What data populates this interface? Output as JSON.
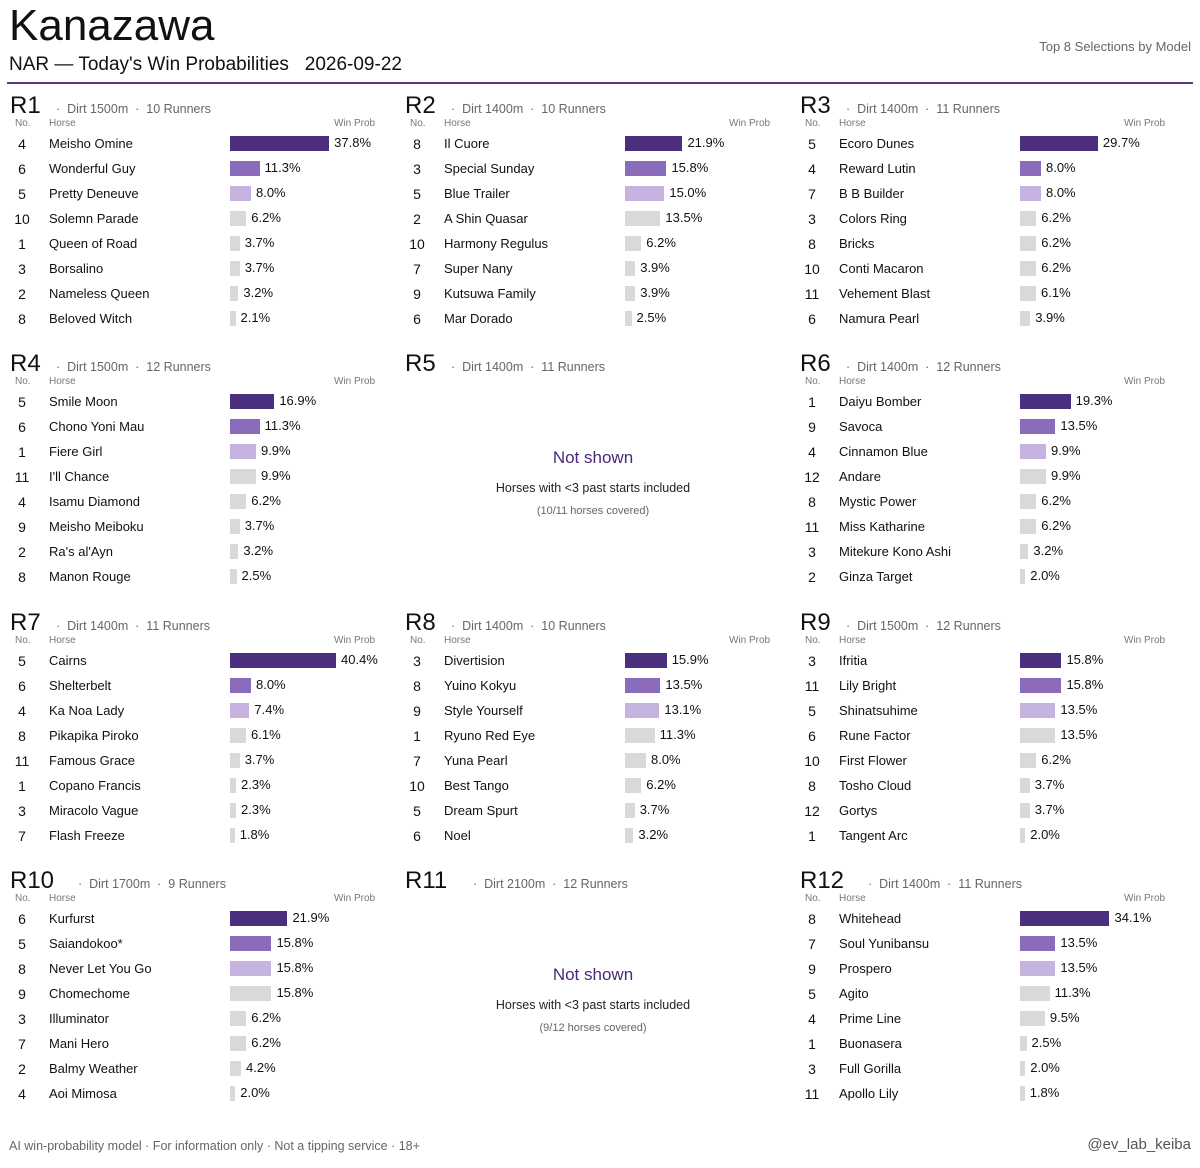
{
  "header": {
    "title": "Kanazawa",
    "subtitle": "NAR — Today's Win Probabilities   2026-09-22",
    "right_note": "Top 8 Selections by Model"
  },
  "footer": {
    "disclaimer": "AI win-probability model  ·  For information only  ·  Not a tipping service  ·  18+",
    "handle": "@ev_lab_keiba"
  },
  "colors": {
    "rank1": "#4b2e7e",
    "rank2": "#8a6cbb",
    "rank3": "#c7b3e0",
    "other": "#d9d9d9",
    "rule": "#5a3a82"
  },
  "chart_data": {
    "type": "bar",
    "x_max_percent": 40.4,
    "column_headers": {
      "no": "No.",
      "horse": "Horse",
      "prob": "Win Prob"
    },
    "races": [
      {
        "race": "R1",
        "meta": "·  Dirt 1500m  ·  10 Runners",
        "runners": [
          {
            "no": "4",
            "horse": "Meisho Omine",
            "prob": 37.8
          },
          {
            "no": "6",
            "horse": "Wonderful Guy",
            "prob": 11.3
          },
          {
            "no": "5",
            "horse": "Pretty Deneuve",
            "prob": 8.0
          },
          {
            "no": "10",
            "horse": "Solemn Parade",
            "prob": 6.2
          },
          {
            "no": "1",
            "horse": "Queen of Road",
            "prob": 3.7
          },
          {
            "no": "3",
            "horse": "Borsalino",
            "prob": 3.7
          },
          {
            "no": "2",
            "horse": "Nameless Queen",
            "prob": 3.2
          },
          {
            "no": "8",
            "horse": "Beloved Witch",
            "prob": 2.1
          }
        ]
      },
      {
        "race": "R2",
        "meta": "·  Dirt 1400m  ·  10 Runners",
        "runners": [
          {
            "no": "8",
            "horse": "Il Cuore",
            "prob": 21.9
          },
          {
            "no": "3",
            "horse": "Special Sunday",
            "prob": 15.8
          },
          {
            "no": "5",
            "horse": "Blue Trailer",
            "prob": 15.0
          },
          {
            "no": "2",
            "horse": "A Shin Quasar",
            "prob": 13.5
          },
          {
            "no": "10",
            "horse": "Harmony Regulus",
            "prob": 6.2
          },
          {
            "no": "7",
            "horse": "Super Nany",
            "prob": 3.9
          },
          {
            "no": "9",
            "horse": "Kutsuwa Family",
            "prob": 3.9
          },
          {
            "no": "6",
            "horse": "Mar Dorado",
            "prob": 2.5
          }
        ]
      },
      {
        "race": "R3",
        "meta": "·  Dirt 1400m  ·  11 Runners",
        "runners": [
          {
            "no": "5",
            "horse": "Ecoro Dunes",
            "prob": 29.7
          },
          {
            "no": "4",
            "horse": "Reward Lutin",
            "prob": 8.0
          },
          {
            "no": "7",
            "horse": "B B Builder",
            "prob": 8.0
          },
          {
            "no": "3",
            "horse": "Colors Ring",
            "prob": 6.2
          },
          {
            "no": "8",
            "horse": "Bricks",
            "prob": 6.2
          },
          {
            "no": "10",
            "horse": "Conti Macaron",
            "prob": 6.2
          },
          {
            "no": "11",
            "horse": "Vehement Blast",
            "prob": 6.1
          },
          {
            "no": "6",
            "horse": "Namura Pearl",
            "prob": 3.9
          }
        ]
      },
      {
        "race": "R4",
        "meta": "·  Dirt 1500m  ·  12 Runners",
        "runners": [
          {
            "no": "5",
            "horse": "Smile Moon",
            "prob": 16.9
          },
          {
            "no": "6",
            "horse": "Chono Yoni Mau",
            "prob": 11.3
          },
          {
            "no": "1",
            "horse": "Fiere Girl",
            "prob": 9.9
          },
          {
            "no": "11",
            "horse": "I'll Chance",
            "prob": 9.9
          },
          {
            "no": "4",
            "horse": "Isamu Diamond",
            "prob": 6.2
          },
          {
            "no": "9",
            "horse": "Meisho Meiboku",
            "prob": 3.7
          },
          {
            "no": "2",
            "horse": "Ra's al'Ayn",
            "prob": 3.2
          },
          {
            "no": "8",
            "horse": "Manon Rouge",
            "prob": 2.5
          }
        ]
      },
      {
        "race": "R5",
        "meta": "·  Dirt 1400m  ·  11 Runners",
        "not_shown": {
          "title": "Not shown",
          "note": "Horses with <3 past starts included",
          "coverage": "(10/11 horses covered)"
        }
      },
      {
        "race": "R6",
        "meta": "·  Dirt 1400m  ·  12 Runners",
        "runners": [
          {
            "no": "1",
            "horse": "Daiyu Bomber",
            "prob": 19.3
          },
          {
            "no": "9",
            "horse": "Savoca",
            "prob": 13.5
          },
          {
            "no": "4",
            "horse": "Cinnamon Blue",
            "prob": 9.9
          },
          {
            "no": "12",
            "horse": "Andare",
            "prob": 9.9
          },
          {
            "no": "8",
            "horse": "Mystic Power",
            "prob": 6.2
          },
          {
            "no": "11",
            "horse": "Miss Katharine",
            "prob": 6.2
          },
          {
            "no": "3",
            "horse": "Mitekure Kono Ashi",
            "prob": 3.2
          },
          {
            "no": "2",
            "horse": "Ginza Target",
            "prob": 2.0
          }
        ]
      },
      {
        "race": "R7",
        "meta": "·  Dirt 1400m  ·  11 Runners",
        "runners": [
          {
            "no": "5",
            "horse": "Cairns",
            "prob": 40.4
          },
          {
            "no": "6",
            "horse": "Shelterbelt",
            "prob": 8.0
          },
          {
            "no": "4",
            "horse": "Ka Noa Lady",
            "prob": 7.4
          },
          {
            "no": "8",
            "horse": "Pikapika Piroko",
            "prob": 6.1
          },
          {
            "no": "11",
            "horse": "Famous Grace",
            "prob": 3.7
          },
          {
            "no": "1",
            "horse": "Copano Francis",
            "prob": 2.3
          },
          {
            "no": "3",
            "horse": "Miracolo Vague",
            "prob": 2.3
          },
          {
            "no": "7",
            "horse": "Flash Freeze",
            "prob": 1.8
          }
        ]
      },
      {
        "race": "R8",
        "meta": "·  Dirt 1400m  ·  10 Runners",
        "runners": [
          {
            "no": "3",
            "horse": "Divertision",
            "prob": 15.9
          },
          {
            "no": "8",
            "horse": "Yuino Kokyu",
            "prob": 13.5
          },
          {
            "no": "9",
            "horse": "Style Yourself",
            "prob": 13.1
          },
          {
            "no": "1",
            "horse": "Ryuno Red Eye",
            "prob": 11.3
          },
          {
            "no": "7",
            "horse": "Yuna Pearl",
            "prob": 8.0
          },
          {
            "no": "10",
            "horse": "Best Tango",
            "prob": 6.2
          },
          {
            "no": "5",
            "horse": "Dream Spurt",
            "prob": 3.7
          },
          {
            "no": "6",
            "horse": "Noel",
            "prob": 3.2
          }
        ]
      },
      {
        "race": "R9",
        "meta": "·  Dirt 1500m  ·  12 Runners",
        "runners": [
          {
            "no": "3",
            "horse": "Ifritia",
            "prob": 15.8
          },
          {
            "no": "11",
            "horse": "Lily Bright",
            "prob": 15.8
          },
          {
            "no": "5",
            "horse": "Shinatsuhime",
            "prob": 13.5
          },
          {
            "no": "6",
            "horse": "Rune Factor",
            "prob": 13.5
          },
          {
            "no": "10",
            "horse": "First Flower",
            "prob": 6.2
          },
          {
            "no": "8",
            "horse": "Tosho Cloud",
            "prob": 3.7
          },
          {
            "no": "12",
            "horse": "Gortys",
            "prob": 3.7
          },
          {
            "no": "1",
            "horse": "Tangent Arc",
            "prob": 2.0
          }
        ]
      },
      {
        "race": "R10",
        "meta": "·  Dirt 1700m  ·  9 Runners",
        "runners": [
          {
            "no": "6",
            "horse": "Kurfurst",
            "prob": 21.9
          },
          {
            "no": "5",
            "horse": "Saiandokoo*",
            "prob": 15.8
          },
          {
            "no": "8",
            "horse": "Never Let You Go",
            "prob": 15.8
          },
          {
            "no": "9",
            "horse": "Chomechome",
            "prob": 15.8
          },
          {
            "no": "3",
            "horse": "Illuminator",
            "prob": 6.2
          },
          {
            "no": "7",
            "horse": "Mani Hero",
            "prob": 6.2
          },
          {
            "no": "2",
            "horse": "Balmy Weather",
            "prob": 4.2
          },
          {
            "no": "4",
            "horse": "Aoi Mimosa",
            "prob": 2.0
          }
        ]
      },
      {
        "race": "R11",
        "meta": "·  Dirt 2100m  ·  12 Runners",
        "not_shown": {
          "title": "Not shown",
          "note": "Horses with <3 past starts included",
          "coverage": "(9/12 horses covered)"
        }
      },
      {
        "race": "R12",
        "meta": "·  Dirt 1400m  ·  11 Runners",
        "runners": [
          {
            "no": "8",
            "horse": "Whitehead",
            "prob": 34.1
          },
          {
            "no": "7",
            "horse": "Soul Yunibansu",
            "prob": 13.5
          },
          {
            "no": "9",
            "horse": "Prospero",
            "prob": 13.5
          },
          {
            "no": "5",
            "horse": "Agito",
            "prob": 11.3
          },
          {
            "no": "4",
            "horse": "Prime Line",
            "prob": 9.5
          },
          {
            "no": "1",
            "horse": "Buonasera",
            "prob": 2.5
          },
          {
            "no": "3",
            "horse": "Full Gorilla",
            "prob": 2.0
          },
          {
            "no": "11",
            "horse": "Apollo Lily",
            "prob": 1.8
          }
        ]
      }
    ]
  }
}
